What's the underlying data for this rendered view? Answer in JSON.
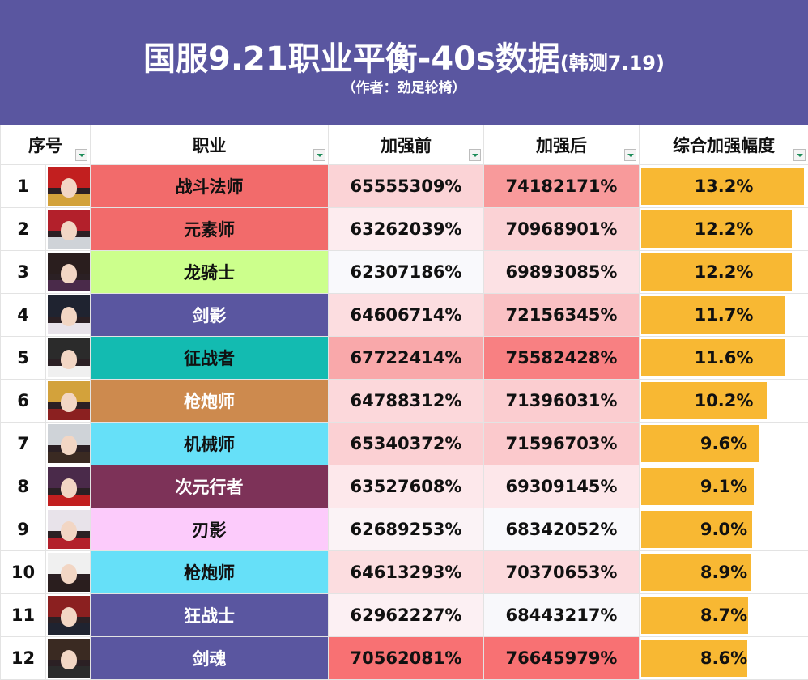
{
  "header": {
    "title_main": "国服9.21职业平衡-40s数据",
    "title_suffix": "(韩测7.19)",
    "author": "（作者：劲足轮椅）"
  },
  "columns": {
    "index": "序号",
    "job": "职业",
    "before": "加强前",
    "after": "加强后",
    "ratio": "综合加强幅度"
  },
  "colors": {
    "banner": "#5a56a0",
    "bar": "#f8b833"
  },
  "rows": [
    {
      "index": "1",
      "job": "战斗法师",
      "job_bg": "#f26b6b",
      "job_fg": "#111111",
      "before": "65555309%",
      "before_bg": "#fbd3d6",
      "after": "74182171%",
      "after_bg": "#f89a9b",
      "ratio": "13.2%",
      "ratio_value": 13.2
    },
    {
      "index": "2",
      "job": "元素师",
      "job_bg": "#f26b6b",
      "job_fg": "#111111",
      "before": "63262039%",
      "before_bg": "#fdecef",
      "after": "70968901%",
      "after_bg": "#fbd2d5",
      "ratio": "12.2%",
      "ratio_value": 12.2
    },
    {
      "index": "3",
      "job": "龙骑士",
      "job_bg": "#ccff8c",
      "job_fg": "#111111",
      "before": "62307186%",
      "before_bg": "#f9f9fc",
      "after": "69893085%",
      "after_bg": "#fce1e4",
      "ratio": "12.2%",
      "ratio_value": 12.2
    },
    {
      "index": "4",
      "job": "剑影",
      "job_bg": "#5a56a0",
      "job_fg": "#ffffff",
      "before": "64606714%",
      "before_bg": "#fcdde0",
      "after": "72156345%",
      "after_bg": "#fac1c4",
      "ratio": "11.7%",
      "ratio_value": 11.7
    },
    {
      "index": "5",
      "job": "征战者",
      "job_bg": "#13bbb1",
      "job_fg": "#111111",
      "before": "67722414%",
      "before_bg": "#f9a8aa",
      "after": "75582428%",
      "after_bg": "#f88082",
      "ratio": "11.6%",
      "ratio_value": 11.6
    },
    {
      "index": "6",
      "job": "枪炮师",
      "job_bg": "#cd8a4e",
      "job_fg": "#ffffff",
      "before": "64788312%",
      "before_bg": "#fcd8db",
      "after": "71396031%",
      "after_bg": "#fbcdd0",
      "ratio": "10.2%",
      "ratio_value": 10.2
    },
    {
      "index": "7",
      "job": "机械师",
      "job_bg": "#66e0f8",
      "job_fg": "#111111",
      "before": "65340372%",
      "before_bg": "#fbd0d3",
      "after": "71596703%",
      "after_bg": "#fbc9cc",
      "ratio": "9.6%",
      "ratio_value": 9.6
    },
    {
      "index": "8",
      "job": "次元行者",
      "job_bg": "#7d3258",
      "job_fg": "#ffffff",
      "before": "63527608%",
      "before_bg": "#fde8eb",
      "after": "69309145%",
      "after_bg": "#fde7ea",
      "ratio": "9.1%",
      "ratio_value": 9.1
    },
    {
      "index": "9",
      "job": "刃影",
      "job_bg": "#fccbfb",
      "job_fg": "#111111",
      "before": "62689253%",
      "before_bg": "#fbf3f6",
      "after": "68342052%",
      "after_bg": "#f9f9fc",
      "ratio": "9.0%",
      "ratio_value": 9.0
    },
    {
      "index": "10",
      "job": "枪炮师",
      "job_bg": "#66e0f8",
      "job_fg": "#111111",
      "before": "64613293%",
      "before_bg": "#fcdde0",
      "after": "70370653%",
      "after_bg": "#fcdadd",
      "ratio": "8.9%",
      "ratio_value": 8.9
    },
    {
      "index": "11",
      "job": "狂战士",
      "job_bg": "#5a56a0",
      "job_fg": "#ffffff",
      "before": "62962227%",
      "before_bg": "#fcf0f3",
      "after": "68443217%",
      "after_bg": "#f8f8fb",
      "ratio": "8.7%",
      "ratio_value": 8.7
    },
    {
      "index": "12",
      "job": "剑魂",
      "job_bg": "#5a56a0",
      "job_fg": "#ffffff",
      "before": "70562081%",
      "before_bg": "#f87173",
      "after": "76645979%",
      "after_bg": "#f87173",
      "ratio": "8.6%",
      "ratio_value": 8.6
    }
  ]
}
